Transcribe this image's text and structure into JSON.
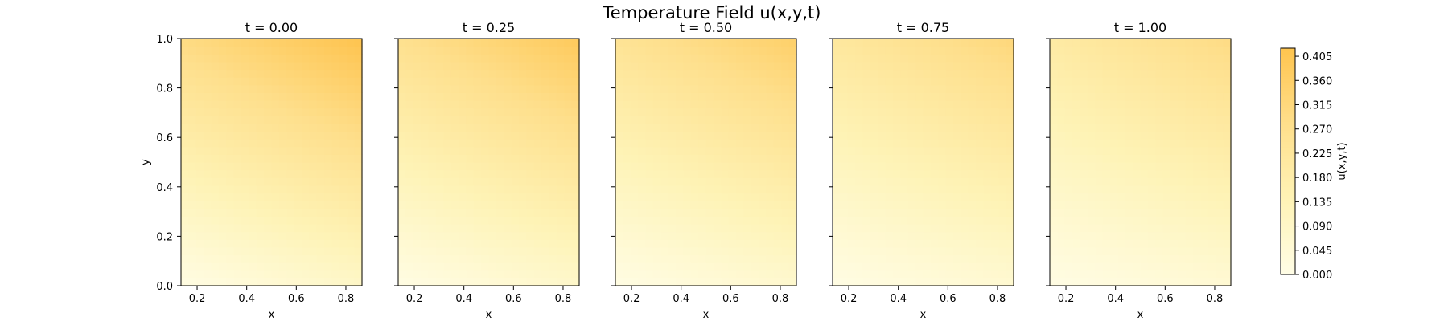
{
  "chart_data": {
    "type": "heatmap",
    "title": "Temperature Field u(x,y,t)",
    "xlabel": "x",
    "ylabel": "y",
    "xlim": [
      0.135,
      0.865
    ],
    "ylim": [
      0.0,
      1.0
    ],
    "x_ticks": [
      "0.2",
      "0.4",
      "0.6",
      "0.8"
    ],
    "y_ticks": [
      "0.0",
      "0.2",
      "0.4",
      "0.6",
      "0.8",
      "1.0"
    ],
    "colormap": [
      "#fffde6",
      "#fef3b6",
      "#fedf8c",
      "#fec44f"
    ],
    "vmin": 0.0,
    "vmax": 0.42,
    "panels": [
      {
        "title": "t = 0.00",
        "t": 0.0,
        "corner_values": {
          "bottom_left": 0.01,
          "bottom_right": 0.09,
          "top_left": 0.3,
          "top_right": 0.42
        }
      },
      {
        "title": "t = 0.25",
        "t": 0.25,
        "corner_values": {
          "bottom_left": 0.01,
          "bottom_right": 0.08,
          "top_left": 0.27,
          "top_right": 0.39
        }
      },
      {
        "title": "t = 0.50",
        "t": 0.5,
        "corner_values": {
          "bottom_left": 0.01,
          "bottom_right": 0.07,
          "top_left": 0.25,
          "top_right": 0.36
        }
      },
      {
        "title": "t = 0.75",
        "t": 0.75,
        "corner_values": {
          "bottom_left": 0.008,
          "bottom_right": 0.06,
          "top_left": 0.22,
          "top_right": 0.32
        }
      },
      {
        "title": "t = 1.00",
        "t": 1.0,
        "corner_values": {
          "bottom_left": 0.007,
          "bottom_right": 0.055,
          "top_left": 0.2,
          "top_right": 0.3
        }
      }
    ],
    "colorbar": {
      "label": "u(x,y,t)",
      "ticks": [
        "0.000",
        "0.045",
        "0.090",
        "0.135",
        "0.180",
        "0.225",
        "0.270",
        "0.315",
        "0.360",
        "0.405"
      ]
    }
  }
}
